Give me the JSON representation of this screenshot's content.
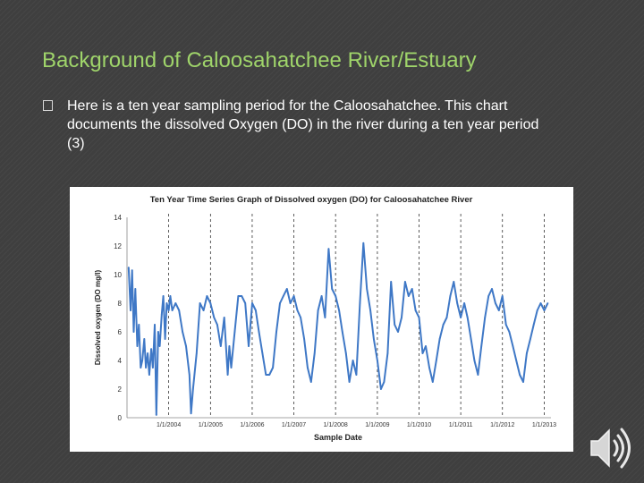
{
  "slide": {
    "title": "Background of Caloosahatchee River/Estuary",
    "bullet_text": "Here is a ten year sampling period for the Caloosahatchee. This chart documents the dissolved Oxygen (DO) in the river during a ten year period  (3)"
  },
  "icons": {
    "bullet": "square-bullet-icon",
    "audio": "speaker-icon"
  },
  "colors": {
    "title": "#9fd46a",
    "background": "#3f3f3f",
    "series": "#3f78c6"
  },
  "chart_data": {
    "type": "line",
    "title": "Ten Year Time Series Graph of Dissolved oxygen (DO) for Caloosahatchee River",
    "xlabel": "Sample Date",
    "ylabel": "Dissolved oxygen (DO mg/l)",
    "ylim": [
      0,
      14
    ],
    "yticks": [
      0,
      2,
      4,
      6,
      8,
      10,
      12,
      14
    ],
    "xlim": [
      "2003-01-01",
      "2013-03-01"
    ],
    "xticks": [
      "1/1/2004",
      "1/1/2005",
      "1/1/2006",
      "1/1/2007",
      "1/1/2008",
      "1/1/2009",
      "1/1/2010",
      "1/1/2011",
      "1/1/2012",
      "1/1/2013"
    ],
    "grid": "vertical dashed at year boundaries",
    "series": [
      {
        "x": [
          "2003-01-15",
          "2003-02-01",
          "2003-02-15",
          "2003-03-01",
          "2003-03-15",
          "2003-04-01",
          "2003-04-15",
          "2003-05-01",
          "2003-05-15",
          "2003-06-01",
          "2003-06-15",
          "2003-07-01",
          "2003-07-15",
          "2003-08-01",
          "2003-08-15",
          "2003-09-01",
          "2003-09-15",
          "2003-10-01",
          "2003-10-15",
          "2003-11-01",
          "2003-11-15",
          "2003-12-01",
          "2003-12-15",
          "2004-01-01",
          "2004-01-15",
          "2004-02-01",
          "2004-03-01",
          "2004-04-01",
          "2004-05-01",
          "2004-06-01",
          "2004-07-01",
          "2004-07-15",
          "2004-08-01",
          "2004-09-01",
          "2004-10-01",
          "2004-11-01",
          "2004-12-01",
          "2005-01-01",
          "2005-02-01",
          "2005-03-01",
          "2005-04-01",
          "2005-05-01",
          "2005-06-01",
          "2005-06-15",
          "2005-07-01",
          "2005-08-01",
          "2005-09-01",
          "2005-10-01",
          "2005-11-01",
          "2005-12-01",
          "2006-01-01",
          "2006-02-01",
          "2006-03-01",
          "2006-04-01",
          "2006-05-01",
          "2006-06-01",
          "2006-07-01",
          "2006-08-01",
          "2006-09-01",
          "2006-10-01",
          "2006-11-01",
          "2006-12-01",
          "2007-01-01",
          "2007-02-01",
          "2007-03-01",
          "2007-04-01",
          "2007-05-01",
          "2007-06-01",
          "2007-07-01",
          "2007-08-01",
          "2007-09-01",
          "2007-10-01",
          "2007-11-01",
          "2007-12-01",
          "2008-01-01",
          "2008-02-01",
          "2008-03-01",
          "2008-04-01",
          "2008-05-01",
          "2008-06-01",
          "2008-07-01",
          "2008-08-01",
          "2008-09-01",
          "2008-10-01",
          "2008-11-01",
          "2008-12-01",
          "2009-01-01",
          "2009-02-01",
          "2009-03-01",
          "2009-04-01",
          "2009-05-01",
          "2009-06-01",
          "2009-07-01",
          "2009-08-01",
          "2009-09-01",
          "2009-10-01",
          "2009-11-01",
          "2009-12-01",
          "2010-01-01",
          "2010-02-01",
          "2010-03-01",
          "2010-04-01",
          "2010-05-01",
          "2010-06-01",
          "2010-07-01",
          "2010-08-01",
          "2010-09-01",
          "2010-10-01",
          "2010-11-01",
          "2010-12-01",
          "2011-01-01",
          "2011-02-01",
          "2011-03-01",
          "2011-04-01",
          "2011-05-01",
          "2011-06-01",
          "2011-07-01",
          "2011-08-01",
          "2011-09-01",
          "2011-10-01",
          "2011-11-01",
          "2011-12-01",
          "2012-01-01",
          "2012-02-01",
          "2012-03-01",
          "2012-04-01",
          "2012-05-01",
          "2012-06-01",
          "2012-07-01",
          "2012-08-01",
          "2012-09-01",
          "2012-10-01",
          "2012-11-01",
          "2012-12-01",
          "2013-01-01",
          "2013-02-01"
        ],
        "values": [
          10.5,
          7.5,
          10.3,
          6.0,
          9.0,
          5.0,
          6.5,
          3.5,
          4.0,
          5.5,
          3.5,
          4.5,
          3.0,
          4.8,
          3.5,
          6.5,
          0.2,
          6.0,
          5.0,
          7.2,
          8.5,
          5.5,
          8.0,
          7.5,
          8.5,
          7.5,
          8.0,
          7.5,
          6.0,
          5.0,
          3.0,
          0.3,
          2.0,
          4.5,
          8.0,
          7.5,
          8.5,
          8.0,
          7.0,
          6.5,
          5.0,
          7.0,
          3.0,
          5.0,
          3.5,
          6.0,
          8.5,
          8.5,
          8.0,
          5.0,
          8.0,
          7.5,
          6.0,
          4.5,
          3.0,
          3.0,
          3.5,
          6.0,
          8.0,
          8.5,
          9.0,
          8.0,
          8.5,
          7.5,
          7.0,
          5.5,
          3.5,
          2.5,
          4.5,
          7.5,
          8.5,
          7.0,
          11.8,
          9.0,
          8.5,
          7.5,
          6.0,
          4.5,
          2.5,
          4.0,
          3.0,
          8.0,
          12.2,
          9.0,
          7.5,
          5.5,
          4.0,
          2.0,
          2.5,
          4.5,
          9.5,
          6.5,
          6.0,
          7.0,
          9.5,
          8.5,
          9.0,
          7.5,
          7.0,
          4.5,
          5.0,
          3.5,
          2.5,
          4.0,
          5.5,
          6.5,
          7.0,
          8.5,
          9.5,
          8.0,
          7.0,
          8.0,
          7.0,
          5.5,
          4.0,
          3.0,
          5.0,
          7.0,
          8.5,
          9.0,
          8.0,
          7.5,
          8.5,
          6.5,
          6.0,
          5.0,
          4.0,
          3.0,
          2.5,
          4.5,
          5.5,
          6.5,
          7.5,
          8.0,
          7.5,
          8.0
        ]
      }
    ]
  }
}
